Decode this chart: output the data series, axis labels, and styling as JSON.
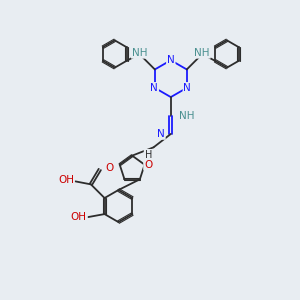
{
  "bg_color": "#e8edf2",
  "bond_color": "#2d2d2d",
  "n_color": "#1a1aff",
  "o_color": "#cc0000",
  "nh_color": "#4a9090",
  "bond_width": 1.3,
  "figsize": [
    3.0,
    3.0
  ],
  "dpi": 100,
  "xlim": [
    0,
    10
  ],
  "ylim": [
    0,
    10
  ]
}
